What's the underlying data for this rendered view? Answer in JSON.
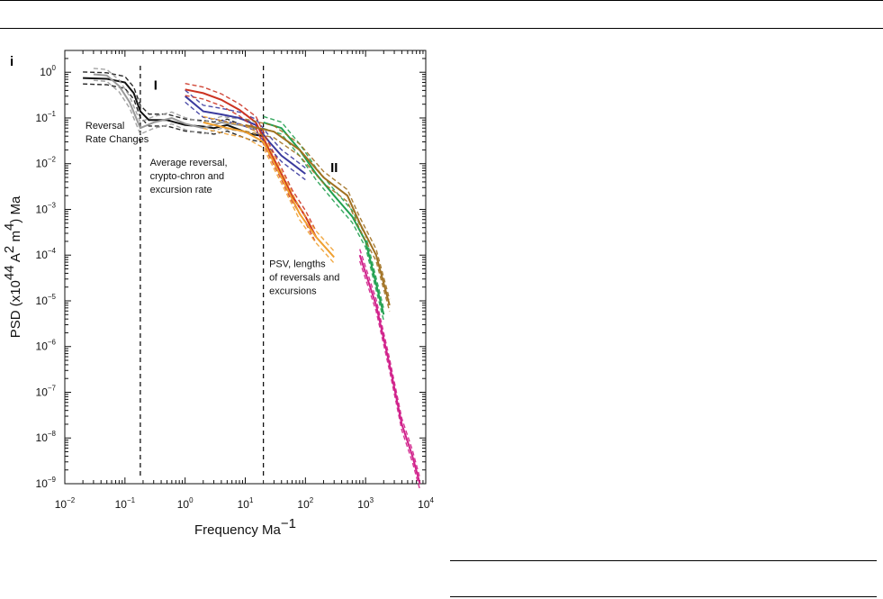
{
  "panel_label": "i",
  "chart_data": {
    "type": "line",
    "xlabel": {
      "base": "Frequency Ma",
      "sup": "−1"
    },
    "ylabel": {
      "parts": [
        {
          "t": "PSD (x10",
          "s": "n"
        },
        {
          "t": "44",
          "s": "sup"
        },
        {
          "t": " A",
          "s": "n"
        },
        {
          "t": "2",
          "s": "sup"
        },
        {
          "t": " m",
          "s": "n"
        },
        {
          "t": "4",
          "s": "sup"
        },
        {
          "t": ") Ma",
          "s": "n"
        }
      ]
    },
    "x_scale": "log",
    "y_scale": "log",
    "xlim": [
      0.01,
      10000
    ],
    "ylim": [
      1e-09,
      3
    ],
    "x_ticks": [
      {
        "base": "10",
        "exp": "−2",
        "value": 0.01
      },
      {
        "base": "10",
        "exp": "−1",
        "value": 0.1
      },
      {
        "base": "10",
        "exp": "0",
        "value": 1
      },
      {
        "base": "10",
        "exp": "1",
        "value": 10
      },
      {
        "base": "10",
        "exp": "2",
        "value": 100
      },
      {
        "base": "10",
        "exp": "3",
        "value": 1000
      },
      {
        "base": "10",
        "exp": "4",
        "value": 10000
      }
    ],
    "y_ticks": [
      {
        "base": "10",
        "exp": "0",
        "value": 1
      },
      {
        "base": "10",
        "exp": "−1",
        "value": 0.1
      },
      {
        "base": "10",
        "exp": "−2",
        "value": 0.01
      },
      {
        "base": "10",
        "exp": "−3",
        "value": 0.001
      },
      {
        "base": "10",
        "exp": "−4",
        "value": 0.0001
      },
      {
        "base": "10",
        "exp": "−5",
        "value": 1e-05
      },
      {
        "base": "10",
        "exp": "−6",
        "value": 1e-06
      },
      {
        "base": "10",
        "exp": "−7",
        "value": 1e-07
      },
      {
        "base": "10",
        "exp": "−8",
        "value": 1e-08
      },
      {
        "base": "10",
        "exp": "−9",
        "value": 1e-09
      }
    ],
    "dividers": [
      0.18,
      20
    ],
    "region_labels": [
      {
        "text": "I",
        "x": 0.3,
        "y": 0.42
      },
      {
        "text": "II",
        "x": 260,
        "y": 0.0065
      }
    ],
    "annotations": [
      {
        "lines": [
          "Reversal",
          "Rate Changes"
        ],
        "x": 0.022,
        "y": 0.058
      },
      {
        "lines": [
          "Average reversal,",
          "crypto-chron and",
          "excursion rate"
        ],
        "x": 0.26,
        "y": 0.009
      },
      {
        "lines": [
          "PSV, lengths",
          "of reversals and",
          "excursions"
        ],
        "x": 25,
        "y": 5.5e-05
      }
    ],
    "series": [
      {
        "color": "#111111",
        "x": [
          0.02,
          0.05,
          0.1,
          0.14,
          0.18,
          0.25,
          0.5,
          1,
          2,
          3,
          5,
          8,
          12,
          20
        ],
        "y": [
          0.75,
          0.72,
          0.6,
          0.35,
          0.14,
          0.09,
          0.09,
          0.07,
          0.065,
          0.06,
          0.07,
          0.055,
          0.045,
          0.04
        ]
      },
      {
        "color": "#999999",
        "x": [
          0.03,
          0.05,
          0.08,
          0.12,
          0.18,
          0.3,
          0.6,
          1,
          2,
          4,
          8,
          15
        ],
        "y": [
          0.9,
          0.85,
          0.5,
          0.22,
          0.06,
          0.08,
          0.1,
          0.075,
          0.06,
          0.08,
          0.07,
          0.06
        ]
      },
      {
        "color": "#3a3a9e",
        "x": [
          1,
          2,
          4,
          8,
          15,
          25,
          40,
          60,
          100
        ],
        "y": [
          0.3,
          0.14,
          0.12,
          0.1,
          0.07,
          0.03,
          0.015,
          0.01,
          0.006
        ]
      },
      {
        "color": "#cc3322",
        "x": [
          1,
          2,
          4,
          8,
          15,
          25,
          40,
          60,
          100,
          150
        ],
        "y": [
          0.42,
          0.35,
          0.25,
          0.15,
          0.08,
          0.02,
          0.006,
          0.002,
          0.0007,
          0.00025
        ]
      },
      {
        "color": "#f0a030",
        "x": [
          2,
          5,
          10,
          20,
          40,
          80,
          150,
          300
        ],
        "y": [
          0.08,
          0.06,
          0.05,
          0.03,
          0.005,
          0.0008,
          0.00025,
          9e-05
        ]
      },
      {
        "color": "#22a050",
        "x": [
          20,
          40,
          80,
          150,
          300,
          600,
          1000,
          2000
        ],
        "y": [
          0.08,
          0.06,
          0.02,
          0.006,
          0.002,
          0.0007,
          0.0002,
          5e-06
        ]
      },
      {
        "color": "#a07020",
        "x": [
          10,
          30,
          80,
          200,
          500,
          800,
          1500,
          2500
        ],
        "y": [
          0.07,
          0.05,
          0.02,
          0.005,
          0.002,
          0.0005,
          0.0001,
          8e-06
        ]
      },
      {
        "color": "#d0208a",
        "x": [
          800,
          1500,
          2500,
          4000,
          6000,
          8000
        ],
        "y": [
          0.0001,
          8e-06,
          4e-07,
          2e-08,
          4e-09,
          1e-09
        ]
      }
    ]
  }
}
